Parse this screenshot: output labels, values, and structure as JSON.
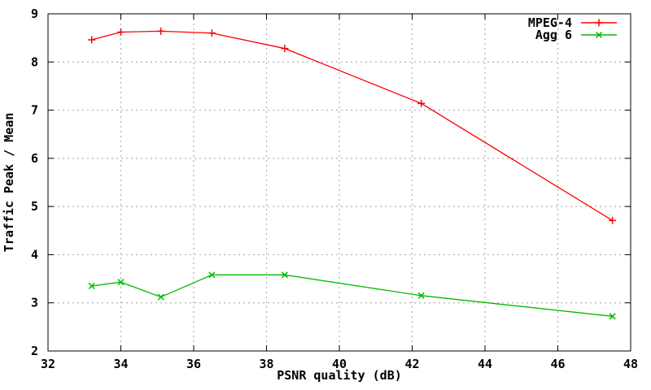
{
  "chart_data": {
    "type": "line",
    "title": "",
    "xlabel": "PSNR quality (dB)",
    "ylabel": "Traffic Peak / Mean",
    "xlim": [
      32,
      48
    ],
    "ylim": [
      2,
      9
    ],
    "xticks": [
      32,
      34,
      36,
      38,
      40,
      42,
      44,
      46,
      48
    ],
    "yticks": [
      2,
      3,
      4,
      5,
      6,
      7,
      8,
      9
    ],
    "grid": true,
    "legend_position": "top-right-inside",
    "x": [
      33.2,
      34.0,
      35.1,
      36.5,
      38.5,
      42.25,
      47.5
    ],
    "series": [
      {
        "name": "MPEG-4",
        "color": "#ff0000",
        "marker": "plus",
        "values": [
          8.46,
          8.62,
          8.64,
          8.6,
          8.28,
          7.14,
          4.71
        ]
      },
      {
        "name": "Agg 6",
        "color": "#00bb00",
        "marker": "x",
        "values": [
          3.35,
          3.43,
          3.12,
          3.58,
          3.58,
          3.15,
          2.72
        ]
      }
    ],
    "colors": {
      "grid": "#b0b0b0",
      "axis": "#000000",
      "text": "#000000",
      "background": "#ffffff"
    }
  }
}
